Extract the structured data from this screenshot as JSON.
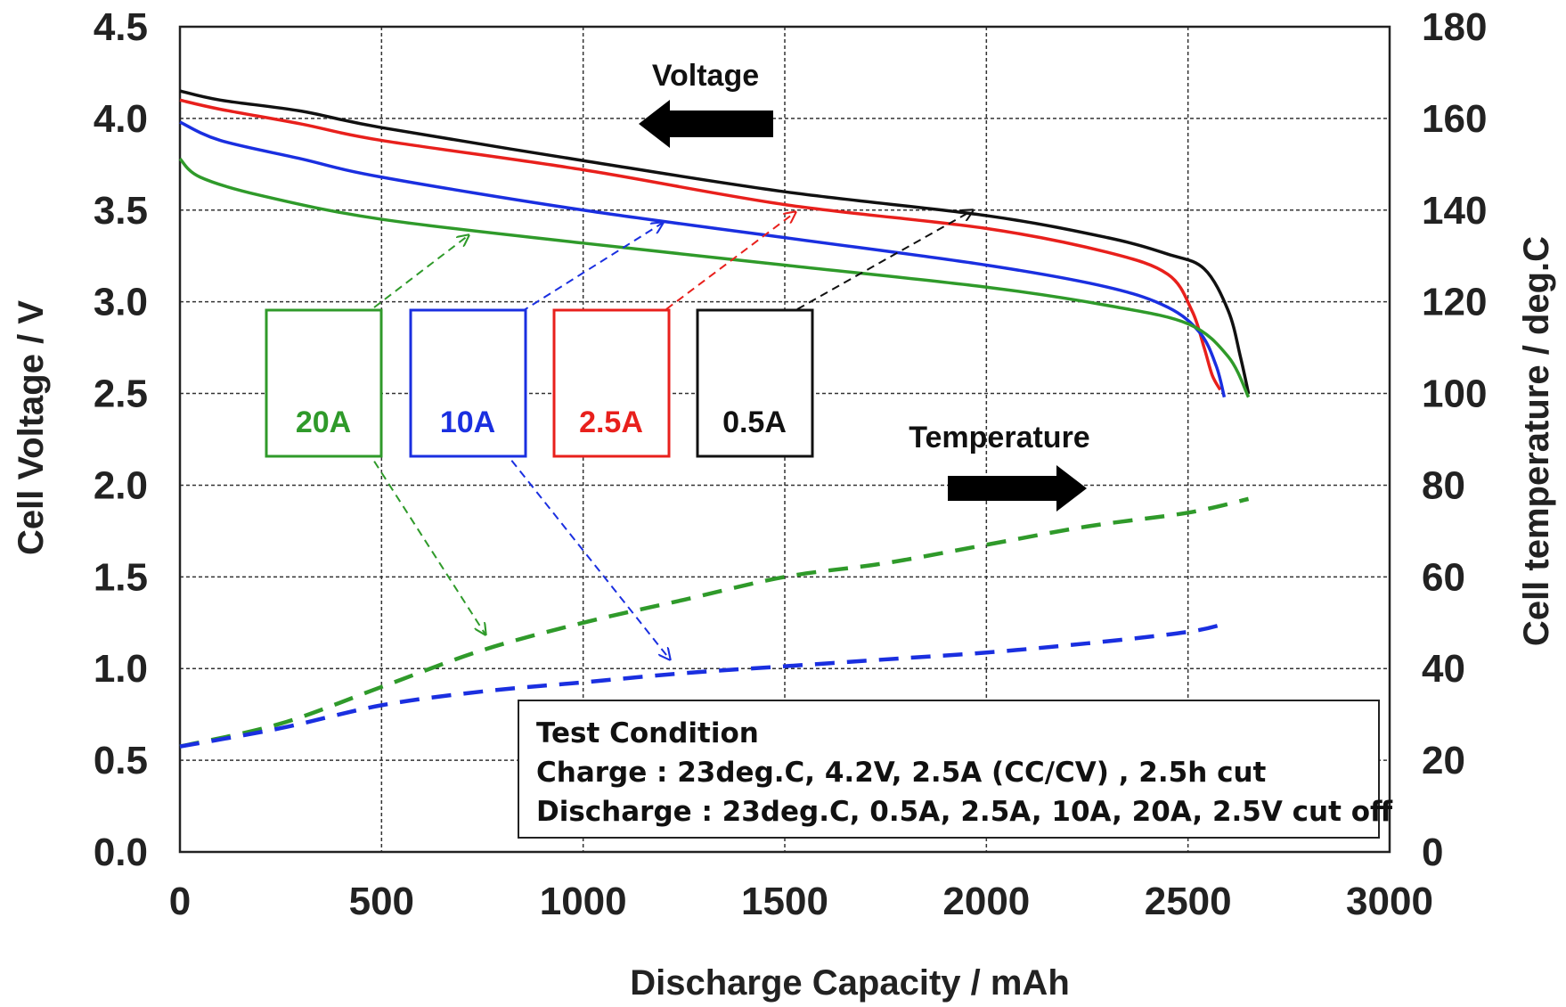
{
  "chart_data": {
    "type": "line",
    "xlabel": "Discharge Capacity / mAh",
    "ylabel_left": "Cell Voltage / V",
    "ylabel_right": "Cell temperature / deg.C",
    "xlim": [
      0,
      3000
    ],
    "ylim_left": [
      0.0,
      4.5
    ],
    "ylim_right": [
      0,
      180
    ],
    "x_ticks": [
      "0",
      "500",
      "1000",
      "1500",
      "2000",
      "2500",
      "3000"
    ],
    "y_left_ticks": [
      "0.0",
      "0.5",
      "1.0",
      "1.5",
      "2.0",
      "2.5",
      "3.0",
      "3.5",
      "4.0",
      "4.5"
    ],
    "y_right_ticks": [
      "0",
      "20",
      "40",
      "60",
      "80",
      "100",
      "120",
      "140",
      "160",
      "180"
    ],
    "grid": true,
    "voltage_series": [
      {
        "name": "0.5A",
        "color": "#111111",
        "axis": "left",
        "x": [
          0,
          100,
          300,
          500,
          1000,
          1500,
          2000,
          2300,
          2450,
          2540,
          2600,
          2630,
          2650
        ],
        "y": [
          4.15,
          4.1,
          4.04,
          3.95,
          3.77,
          3.6,
          3.47,
          3.35,
          3.26,
          3.18,
          2.95,
          2.7,
          2.5
        ]
      },
      {
        "name": "2.5A",
        "color": "#e8201c",
        "axis": "left",
        "x": [
          0,
          100,
          300,
          500,
          1000,
          1500,
          2000,
          2300,
          2450,
          2510,
          2540,
          2560,
          2580
        ],
        "y": [
          4.1,
          4.05,
          3.97,
          3.88,
          3.72,
          3.53,
          3.4,
          3.27,
          3.15,
          2.95,
          2.75,
          2.6,
          2.52
        ]
      },
      {
        "name": "10A",
        "color": "#1a2fe0",
        "axis": "left",
        "x": [
          0,
          100,
          300,
          500,
          1000,
          1500,
          2000,
          2300,
          2450,
          2530,
          2570,
          2590
        ],
        "y": [
          3.98,
          3.88,
          3.78,
          3.68,
          3.5,
          3.35,
          3.2,
          3.08,
          2.97,
          2.83,
          2.65,
          2.48
        ]
      },
      {
        "name": "20A",
        "color": "#2f9a2a",
        "axis": "left",
        "x": [
          0,
          50,
          200,
          500,
          1000,
          1500,
          2000,
          2300,
          2500,
          2600,
          2650
        ],
        "y": [
          3.78,
          3.68,
          3.58,
          3.45,
          3.32,
          3.2,
          3.08,
          2.98,
          2.88,
          2.7,
          2.48
        ]
      }
    ],
    "temperature_series": [
      {
        "name": "20A",
        "color": "#2f9a2a",
        "axis": "right",
        "x": [
          0,
          250,
          500,
          750,
          1000,
          1250,
          1500,
          1750,
          2000,
          2250,
          2500,
          2650
        ],
        "y": [
          23,
          28,
          36,
          44,
          50,
          55,
          60,
          63,
          67,
          71,
          74,
          77
        ]
      },
      {
        "name": "10A",
        "color": "#1a2fe0",
        "axis": "right",
        "x": [
          0,
          250,
          500,
          750,
          1000,
          1250,
          1500,
          1750,
          2000,
          2250,
          2500,
          2600
        ],
        "y": [
          23,
          27,
          32,
          35,
          37,
          39,
          40.5,
          42,
          43.5,
          45.5,
          48,
          50
        ]
      }
    ],
    "annotations": {
      "voltage_label": "Voltage",
      "temperature_label": "Temperature"
    },
    "legend_boxes": [
      {
        "label": "20A",
        "color": "#2f9a2a"
      },
      {
        "label": "10A",
        "color": "#1a2fe0"
      },
      {
        "label": "2.5A",
        "color": "#e8201c"
      },
      {
        "label": "0.5A",
        "color": "#111111"
      }
    ],
    "test_condition": {
      "title": "Test Condition",
      "charge": "Charge : 23deg.C, 4.2V, 2.5A (CC/CV) , 2.5h cut",
      "discharge": "Discharge : 23deg.C, 0.5A, 2.5A, 10A, 20A, 2.5V cut off"
    }
  }
}
